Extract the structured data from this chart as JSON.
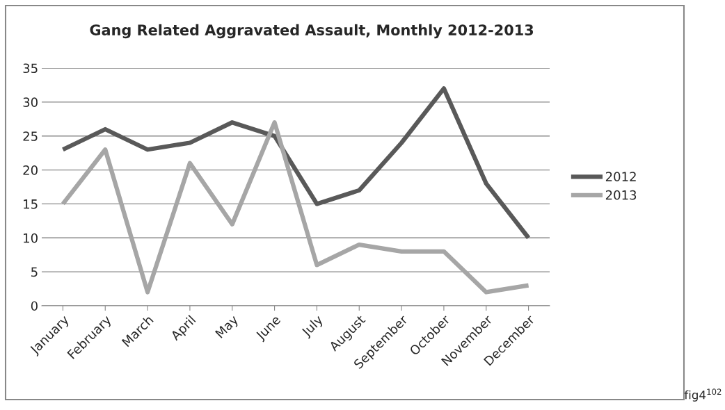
{
  "chart_data": {
    "type": "line",
    "title": "Gang Related Aggravated Assault, Monthly 2012-2013",
    "categories": [
      "January",
      "February",
      "March",
      "April",
      "May",
      "June",
      "July",
      "August",
      "September",
      "October",
      "November",
      "December"
    ],
    "series": [
      {
        "name": "2012",
        "color": "#595959",
        "values": [
          23,
          26,
          23,
          24,
          27,
          25,
          15,
          17,
          24,
          32,
          18,
          10
        ]
      },
      {
        "name": "2013",
        "color": "#a6a6a6",
        "values": [
          15,
          23,
          2,
          21,
          12,
          27,
          6,
          9,
          8,
          8,
          2,
          3
        ]
      }
    ],
    "ylim": [
      0,
      35
    ],
    "yticks": [
      0,
      5,
      10,
      15,
      20,
      25,
      30,
      35
    ],
    "grid": "y",
    "legend": "right",
    "marker": "none",
    "line_style": "solid",
    "annotations": [
      "fig4$^{102}$"
    ]
  }
}
